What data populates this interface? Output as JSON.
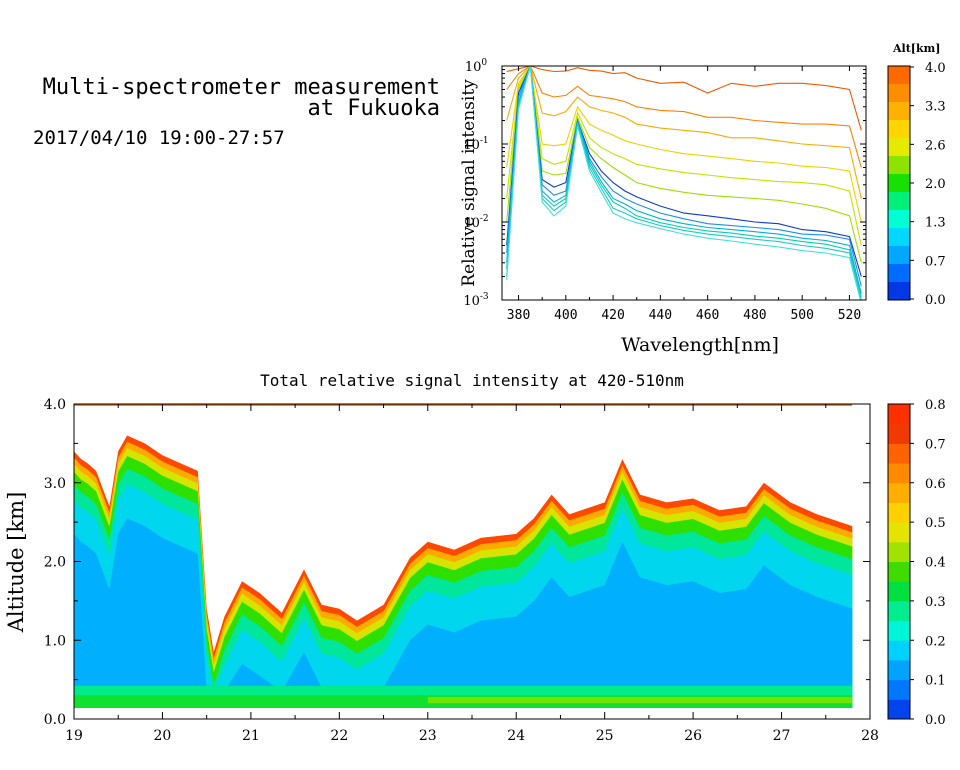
{
  "header": {
    "title_line1": "Multi-spectrometer measurement",
    "title_line2": "at Fukuoka",
    "subtitle": "2017/04/10 19:00-27:57"
  },
  "chart_data": [
    {
      "type": "line",
      "xlabel": "Wavelength[nm]",
      "ylabel": "Relative signal intensity",
      "xlim": [
        373,
        527
      ],
      "ylim": [
        0.001,
        1
      ],
      "yscale": "log",
      "x_ticks": [
        "380",
        "400",
        "420",
        "440",
        "460",
        "480",
        "500",
        "520"
      ],
      "y_ticks": [
        {
          "base": "10",
          "exp": "0"
        },
        {
          "base": "10",
          "exp": "-1"
        },
        {
          "base": "10",
          "exp": "-2"
        },
        {
          "base": "10",
          "exp": "-3"
        }
      ],
      "x": [
        375,
        380,
        385,
        390,
        395,
        400,
        405,
        410,
        415,
        420,
        425,
        430,
        440,
        450,
        460,
        470,
        480,
        490,
        500,
        510,
        520,
        525
      ],
      "colorbar": {
        "title": "Alt[km]",
        "tick_labels": [
          "4.0",
          "3.3",
          "2.6",
          "2.0",
          "1.3",
          "0.7",
          "0.0"
        ],
        "colors": [
          "#ff6a00",
          "#ff8d00",
          "#ffb000",
          "#ffd400",
          "#e6ea00",
          "#8ee400",
          "#18e000",
          "#00f07a",
          "#00ffd2",
          "#00d8ff",
          "#00a8ff",
          "#006cff",
          "#0038e6"
        ]
      },
      "series": [
        {
          "color": "#f05a00",
          "values": [
            0.85,
            0.92,
            1.0,
            0.9,
            0.85,
            0.86,
            0.95,
            0.88,
            0.86,
            0.8,
            0.82,
            0.7,
            0.6,
            0.62,
            0.45,
            0.6,
            0.55,
            0.6,
            0.6,
            0.56,
            0.5,
            0.15
          ]
        },
        {
          "color": "#ff8000",
          "values": [
            0.5,
            0.8,
            1.0,
            0.45,
            0.4,
            0.42,
            0.55,
            0.42,
            0.4,
            0.38,
            0.35,
            0.3,
            0.27,
            0.26,
            0.22,
            0.22,
            0.2,
            0.19,
            0.18,
            0.18,
            0.17,
            0.05
          ]
        },
        {
          "color": "#ffaa00",
          "values": [
            0.2,
            0.7,
            1.0,
            0.25,
            0.23,
            0.26,
            0.4,
            0.3,
            0.27,
            0.25,
            0.22,
            0.18,
            0.16,
            0.15,
            0.14,
            0.12,
            0.12,
            0.11,
            0.1,
            0.095,
            0.09,
            0.02
          ]
        },
        {
          "color": "#f0d000",
          "values": [
            0.05,
            0.6,
            1.0,
            0.1,
            0.095,
            0.1,
            0.3,
            0.18,
            0.15,
            0.13,
            0.11,
            0.1,
            0.085,
            0.075,
            0.07,
            0.065,
            0.06,
            0.057,
            0.052,
            0.05,
            0.045,
            0.01
          ]
        },
        {
          "color": "#c8e000",
          "values": [
            0.02,
            0.55,
            1.0,
            0.065,
            0.055,
            0.06,
            0.25,
            0.12,
            0.09,
            0.075,
            0.065,
            0.055,
            0.048,
            0.043,
            0.04,
            0.037,
            0.035,
            0.033,
            0.032,
            0.03,
            0.025,
            0.005
          ]
        },
        {
          "color": "#9de000",
          "values": [
            0.01,
            0.5,
            1.0,
            0.045,
            0.04,
            0.042,
            0.22,
            0.09,
            0.065,
            0.05,
            0.04,
            0.032,
            0.027,
            0.024,
            0.022,
            0.021,
            0.02,
            0.019,
            0.017,
            0.015,
            0.012,
            0.003
          ]
        },
        {
          "color": "#0e3ec8",
          "values": [
            0.005,
            0.45,
            1.0,
            0.035,
            0.028,
            0.032,
            0.2,
            0.075,
            0.045,
            0.032,
            0.025,
            0.021,
            0.016,
            0.013,
            0.012,
            0.011,
            0.01,
            0.0095,
            0.008,
            0.0075,
            0.0065,
            0.002
          ]
        },
        {
          "color": "#1a8ef0",
          "values": [
            0.004,
            0.4,
            1.0,
            0.03,
            0.022,
            0.025,
            0.2,
            0.065,
            0.038,
            0.025,
            0.02,
            0.017,
            0.013,
            0.011,
            0.0095,
            0.009,
            0.0085,
            0.008,
            0.007,
            0.0068,
            0.006,
            0.0015
          ]
        },
        {
          "color": "#00b0e0",
          "values": [
            0.003,
            0.35,
            1.0,
            0.025,
            0.018,
            0.022,
            0.19,
            0.06,
            0.033,
            0.02,
            0.017,
            0.014,
            0.011,
            0.0095,
            0.0085,
            0.008,
            0.0075,
            0.007,
            0.0062,
            0.0058,
            0.005,
            0.0012
          ]
        },
        {
          "color": "#00d0b0",
          "values": [
            0.0025,
            0.33,
            1.0,
            0.022,
            0.016,
            0.02,
            0.185,
            0.055,
            0.03,
            0.018,
            0.015,
            0.012,
            0.0098,
            0.0085,
            0.0077,
            0.0072,
            0.0066,
            0.0062,
            0.0056,
            0.0052,
            0.0044,
            0.0011
          ]
        },
        {
          "color": "#20c8c8",
          "values": [
            0.002,
            0.3,
            1.0,
            0.02,
            0.014,
            0.018,
            0.18,
            0.05,
            0.027,
            0.015,
            0.013,
            0.011,
            0.009,
            0.0078,
            0.007,
            0.0065,
            0.006,
            0.0056,
            0.005,
            0.0046,
            0.004,
            0.001
          ]
        },
        {
          "color": "#40e0e0",
          "values": [
            0.0018,
            0.28,
            1.0,
            0.018,
            0.012,
            0.016,
            0.17,
            0.045,
            0.024,
            0.013,
            0.011,
            0.0098,
            0.0082,
            0.007,
            0.0062,
            0.0057,
            0.0052,
            0.0048,
            0.0043,
            0.004,
            0.0035,
            0.0009
          ]
        }
      ]
    },
    {
      "type": "heatmap",
      "title": "Total relative signal intensity at 420-510nm",
      "ylabel": "Altitude [km]",
      "xlim": [
        19,
        28
      ],
      "ylim": [
        0,
        4
      ],
      "x_ticks": [
        "19",
        "20",
        "21",
        "22",
        "23",
        "24",
        "25",
        "26",
        "27",
        "28"
      ],
      "y_ticks": [
        "0.0",
        "1.0",
        "2.0",
        "3.0",
        "4.0"
      ],
      "colorbar": {
        "range": [
          0,
          0.8
        ],
        "tick_labels": [
          "0.8",
          "0.7",
          "0.6",
          "0.5",
          "0.4",
          "0.3",
          "0.2",
          "0.1",
          "0.0"
        ],
        "colors": [
          "#0044ee",
          "#0077ff",
          "#00a4ff",
          "#00d2ff",
          "#00f5d8",
          "#00ee90",
          "#00e040",
          "#40dc00",
          "#a2e200",
          "#e5e400",
          "#ffd000",
          "#ffae00",
          "#ff8a00",
          "#ff6200",
          "#f03a00",
          "#ff3000"
        ]
      },
      "time": [
        19.0,
        19.08,
        19.15,
        19.25,
        19.4,
        19.5,
        19.6,
        19.8,
        20.0,
        20.2,
        20.4,
        20.5,
        20.58,
        20.7,
        20.9,
        21.1,
        21.35,
        21.6,
        21.8,
        22.0,
        22.2,
        22.5,
        22.8,
        23.0,
        23.3,
        23.6,
        24.0,
        24.2,
        24.4,
        24.6,
        25.0,
        25.2,
        25.4,
        25.7,
        26.0,
        26.3,
        26.6,
        26.8,
        27.1,
        27.4,
        27.8
      ],
      "cloud_top_km": [
        3.4,
        3.3,
        3.25,
        3.15,
        2.7,
        3.4,
        3.6,
        3.5,
        3.35,
        3.25,
        3.15,
        1.4,
        0.85,
        1.3,
        1.75,
        1.6,
        1.35,
        1.9,
        1.45,
        1.4,
        1.25,
        1.45,
        2.05,
        2.25,
        2.15,
        2.3,
        2.35,
        2.55,
        2.85,
        2.6,
        2.75,
        3.3,
        2.85,
        2.75,
        2.8,
        2.65,
        2.7,
        3.0,
        2.75,
        2.6,
        2.45
      ],
      "layer_colors": [
        "#ff4800",
        "#ffaa00",
        "#d6e400",
        "#2ee000",
        "#00e69a",
        "#00d7ef",
        "#00b0ff"
      ]
    }
  ]
}
